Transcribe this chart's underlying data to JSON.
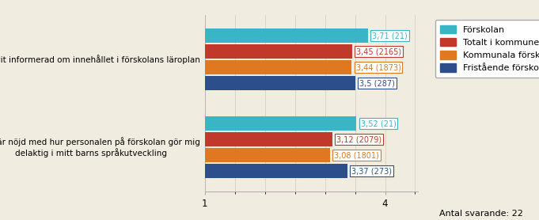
{
  "questions": [
    "Jag har blivit informerad om innehållet i förskolans läroplan",
    "Jag är nöjd med hur personalen på förskolan gör mig\ndelaktig i mitt barns språkutveckling"
  ],
  "series": [
    {
      "label": "Förskolan",
      "color": "#3ab5c6",
      "values": [
        3.71,
        3.52
      ],
      "counts": [
        21,
        21
      ]
    },
    {
      "label": "Totalt i kommunen",
      "color": "#c0392b",
      "values": [
        3.45,
        3.12
      ],
      "counts": [
        2165,
        2079
      ]
    },
    {
      "label": "Kommunala förskolor",
      "color": "#e07820",
      "values": [
        3.44,
        3.08
      ],
      "counts": [
        1873,
        1801
      ]
    },
    {
      "label": "Fristående förskolor",
      "color": "#2c4e8a",
      "values": [
        3.5,
        3.37
      ],
      "counts": [
        287,
        273
      ]
    }
  ],
  "xlim": [
    1,
    4.55
  ],
  "xticks": [
    1,
    4
  ],
  "bar_height": 0.16,
  "bar_spacing": 0.02,
  "group_centers": [
    0.55,
    0.0
  ],
  "background_color": "#f0ece0",
  "plot_bg_color": "#f0ece0",
  "footer": "Antal svarande: 22",
  "annotation_fontsize": 7.0,
  "ytick_fontsize": 7.5,
  "xtick_fontsize": 8.5
}
